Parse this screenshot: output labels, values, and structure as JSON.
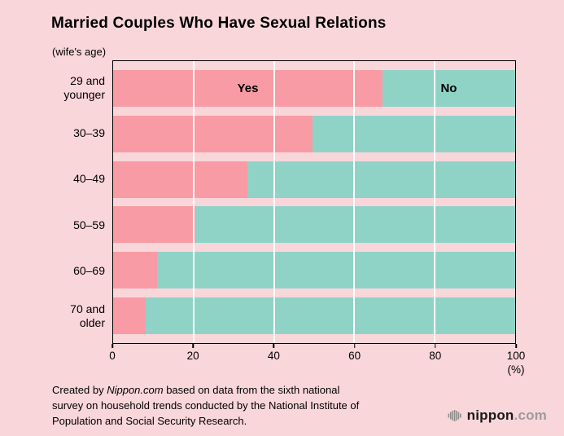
{
  "title": "Married Couples Who Have Sexual Relations",
  "axis_note": "(wife's age)",
  "chart_data": {
    "type": "bar",
    "orientation": "horizontal",
    "stacked": true,
    "title": "Married Couples Who Have Sexual Relations",
    "categories": [
      "29 and younger",
      "30–39",
      "40–49",
      "50–59",
      "60–69",
      "70 and older"
    ],
    "series": [
      {
        "name": "Yes",
        "color": "#f99ba4",
        "values": [
          67,
          49.5,
          33.5,
          20.5,
          11,
          8
        ]
      },
      {
        "name": "No",
        "color": "#8fd3c7",
        "values": [
          33,
          50.5,
          66.5,
          79.5,
          89,
          92
        ]
      }
    ],
    "xlim": [
      0,
      100
    ],
    "xticks": [
      0,
      20,
      40,
      60,
      80,
      100
    ],
    "x_unit": "(%)",
    "grid": "white vertical lines at interior ticks",
    "legend": "series names labeled inside first bar"
  },
  "footer": {
    "prefix": "Created by ",
    "brand": "Nippon.com",
    "rest": " based on data from the sixth national survey on household trends conducted by the National Institute of Population and Social Security Research."
  },
  "logo": {
    "brand": "nippon",
    "tld": ".com"
  },
  "colors": {
    "background": "#f9d6da",
    "yes": "#f99ba4",
    "no": "#8fd3c7",
    "axis": "#000000",
    "gridline": "#ffffff"
  }
}
